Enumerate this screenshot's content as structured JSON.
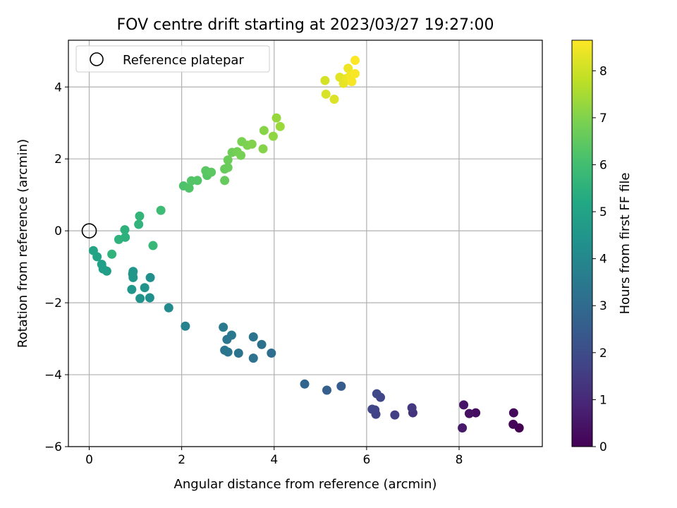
{
  "chart_data": {
    "type": "scatter",
    "title": "FOV centre drift starting at 2023/03/27 19:27:00",
    "xlabel": "Angular distance from reference (arcmin)",
    "ylabel": "Rotation from reference (arcmin)",
    "xlim": [
      -0.45,
      9.8
    ],
    "ylim": [
      -6,
      5.3
    ],
    "x_ticks": [
      0,
      2,
      4,
      6,
      8
    ],
    "y_ticks": [
      -6,
      -4,
      -2,
      0,
      2,
      4
    ],
    "grid": true,
    "legend": {
      "placement": "top-left",
      "entries": [
        "Reference platepar"
      ]
    },
    "reference_point": {
      "x": 0,
      "y": 0
    },
    "colorbar": {
      "label": "Hours from first FF file",
      "range": [
        0,
        8.65
      ],
      "ticks": [
        0,
        1,
        2,
        3,
        4,
        5,
        6,
        7,
        8
      ],
      "colormap": "viridis"
    },
    "points": [
      {
        "x": 9.3,
        "y": -5.48,
        "h": 0.0
      },
      {
        "x": 9.17,
        "y": -5.38,
        "h": 0.1
      },
      {
        "x": 9.18,
        "y": -5.06,
        "h": 0.2
      },
      {
        "x": 8.36,
        "y": -5.06,
        "h": 0.3
      },
      {
        "x": 8.22,
        "y": -5.08,
        "h": 0.4
      },
      {
        "x": 8.1,
        "y": -4.84,
        "h": 0.5
      },
      {
        "x": 8.07,
        "y": -5.48,
        "h": 0.6
      },
      {
        "x": 7.0,
        "y": -5.06,
        "h": 1.3
      },
      {
        "x": 6.98,
        "y": -4.92,
        "h": 1.4
      },
      {
        "x": 6.61,
        "y": -5.12,
        "h": 1.6
      },
      {
        "x": 6.3,
        "y": -4.63,
        "h": 1.8
      },
      {
        "x": 6.22,
        "y": -4.53,
        "h": 1.9
      },
      {
        "x": 6.2,
        "y": -5.1,
        "h": 1.7
      },
      {
        "x": 6.18,
        "y": -4.98,
        "h": 1.7
      },
      {
        "x": 6.12,
        "y": -4.96,
        "h": 1.8
      },
      {
        "x": 5.45,
        "y": -4.32,
        "h": 2.5
      },
      {
        "x": 5.14,
        "y": -4.43,
        "h": 2.6
      },
      {
        "x": 4.66,
        "y": -4.26,
        "h": 2.8
      },
      {
        "x": 3.94,
        "y": -3.4,
        "h": 3.1
      },
      {
        "x": 3.73,
        "y": -3.16,
        "h": 3.2
      },
      {
        "x": 3.55,
        "y": -2.95,
        "h": 3.3
      },
      {
        "x": 3.55,
        "y": -3.54,
        "h": 3.25
      },
      {
        "x": 3.23,
        "y": -3.4,
        "h": 3.3
      },
      {
        "x": 3.0,
        "y": -3.37,
        "h": 3.4
      },
      {
        "x": 2.93,
        "y": -3.32,
        "h": 3.4
      },
      {
        "x": 3.08,
        "y": -2.9,
        "h": 3.45
      },
      {
        "x": 2.98,
        "y": -3.02,
        "h": 3.4
      },
      {
        "x": 2.9,
        "y": -2.68,
        "h": 3.5
      },
      {
        "x": 2.08,
        "y": -2.65,
        "h": 3.8
      },
      {
        "x": 1.72,
        "y": -2.14,
        "h": 4.1
      },
      {
        "x": 1.32,
        "y": -1.3,
        "h": 4.3
      },
      {
        "x": 1.31,
        "y": -1.86,
        "h": 4.3
      },
      {
        "x": 1.2,
        "y": -1.58,
        "h": 4.4
      },
      {
        "x": 1.1,
        "y": -1.88,
        "h": 4.4
      },
      {
        "x": 0.95,
        "y": -1.13,
        "h": 4.5
      },
      {
        "x": 0.94,
        "y": -1.2,
        "h": 4.5
      },
      {
        "x": 0.95,
        "y": -1.3,
        "h": 4.55
      },
      {
        "x": 0.92,
        "y": -1.63,
        "h": 4.5
      },
      {
        "x": 0.38,
        "y": -1.12,
        "h": 4.8
      },
      {
        "x": 0.3,
        "y": -1.06,
        "h": 4.85
      },
      {
        "x": 0.27,
        "y": -0.93,
        "h": 4.9
      },
      {
        "x": 0.17,
        "y": -0.72,
        "h": 5.0
      },
      {
        "x": 0.09,
        "y": -0.55,
        "h": 5.05
      },
      {
        "x": 0.49,
        "y": -0.65,
        "h": 5.6
      },
      {
        "x": 0.64,
        "y": -0.24,
        "h": 5.55
      },
      {
        "x": 0.78,
        "y": -0.18,
        "h": 5.5
      },
      {
        "x": 0.77,
        "y": 0.03,
        "h": 5.5
      },
      {
        "x": 1.07,
        "y": 0.18,
        "h": 5.6
      },
      {
        "x": 1.09,
        "y": 0.41,
        "h": 5.65
      },
      {
        "x": 1.38,
        "y": -0.41,
        "h": 5.75
      },
      {
        "x": 1.55,
        "y": 0.57,
        "h": 5.9
      },
      {
        "x": 2.04,
        "y": 1.25,
        "h": 6.2
      },
      {
        "x": 2.16,
        "y": 1.19,
        "h": 6.25
      },
      {
        "x": 2.21,
        "y": 1.39,
        "h": 6.3
      },
      {
        "x": 2.34,
        "y": 1.4,
        "h": 6.3
      },
      {
        "x": 2.55,
        "y": 1.54,
        "h": 6.35
      },
      {
        "x": 2.52,
        "y": 1.67,
        "h": 6.4
      },
      {
        "x": 2.64,
        "y": 1.63,
        "h": 6.45
      },
      {
        "x": 2.93,
        "y": 1.4,
        "h": 6.6
      },
      {
        "x": 2.93,
        "y": 1.72,
        "h": 6.6
      },
      {
        "x": 3.0,
        "y": 1.76,
        "h": 6.65
      },
      {
        "x": 3.0,
        "y": 1.97,
        "h": 6.7
      },
      {
        "x": 3.09,
        "y": 2.18,
        "h": 6.75
      },
      {
        "x": 3.2,
        "y": 2.2,
        "h": 6.8
      },
      {
        "x": 3.28,
        "y": 2.1,
        "h": 6.85
      },
      {
        "x": 3.3,
        "y": 2.48,
        "h": 6.9
      },
      {
        "x": 3.42,
        "y": 2.38,
        "h": 6.95
      },
      {
        "x": 3.52,
        "y": 2.41,
        "h": 7.0
      },
      {
        "x": 3.76,
        "y": 2.28,
        "h": 7.05
      },
      {
        "x": 3.78,
        "y": 2.79,
        "h": 7.1
      },
      {
        "x": 3.98,
        "y": 2.63,
        "h": 7.2
      },
      {
        "x": 4.05,
        "y": 3.14,
        "h": 7.3
      },
      {
        "x": 4.13,
        "y": 2.9,
        "h": 7.35
      },
      {
        "x": 5.1,
        "y": 4.18,
        "h": 8.1
      },
      {
        "x": 5.12,
        "y": 3.8,
        "h": 8.15
      },
      {
        "x": 5.3,
        "y": 3.66,
        "h": 8.2
      },
      {
        "x": 5.42,
        "y": 4.27,
        "h": 8.3
      },
      {
        "x": 5.5,
        "y": 4.1,
        "h": 8.35
      },
      {
        "x": 5.57,
        "y": 4.24,
        "h": 8.4
      },
      {
        "x": 5.6,
        "y": 4.52,
        "h": 8.45
      },
      {
        "x": 5.65,
        "y": 4.31,
        "h": 8.5
      },
      {
        "x": 5.68,
        "y": 4.15,
        "h": 8.55
      },
      {
        "x": 5.75,
        "y": 4.37,
        "h": 8.6
      },
      {
        "x": 5.75,
        "y": 4.74,
        "h": 8.65
      }
    ]
  }
}
